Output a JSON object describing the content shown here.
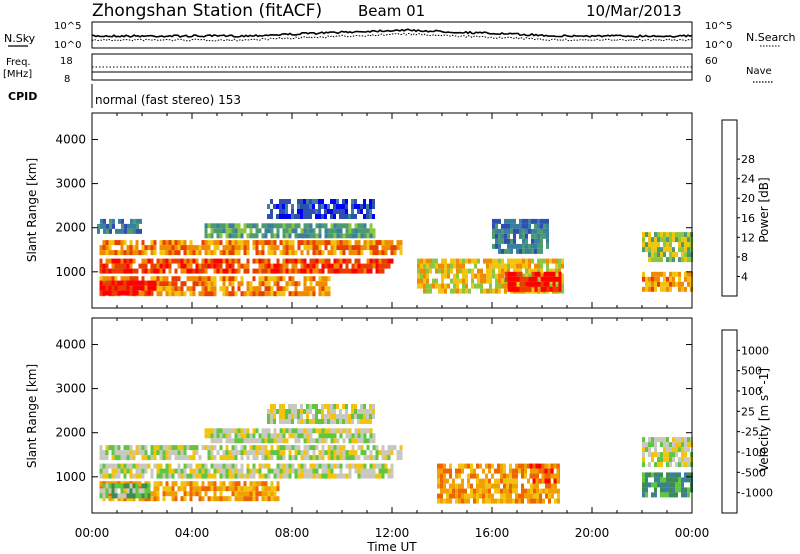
{
  "header": {
    "station": "Zhongshan Station (fitACF)",
    "beam": "Beam 01",
    "date": "10/Mar/2013"
  },
  "summary": {
    "nsky_label": "N.Sky",
    "nsearch_label": "N.Search",
    "freq_label_1": "Freq.",
    "freq_label_2": "[MHz]",
    "nave_label": "Nave",
    "cpid_label": "CPID",
    "cpid_text": "normal (fast stereo) 153",
    "noise_ticks_left": [
      "10^5",
      "10^0"
    ],
    "noise_ticks_right": [
      "10^5",
      "10^0"
    ],
    "freq_ticks": [
      "18",
      "8"
    ],
    "nave_ticks": [
      "60",
      "0"
    ]
  },
  "chart_data": [
    {
      "type": "heatmap",
      "name": "power-panel",
      "ylabel": "Slant Range [km]",
      "xlabel": "Time UT",
      "x_ticks": [
        "00:00",
        "04:00",
        "08:00",
        "12:00",
        "16:00",
        "20:00",
        "00:00"
      ],
      "x_range_hours": [
        0,
        24
      ],
      "y_ticks": [
        1000,
        2000,
        3000,
        4000
      ],
      "ylim": [
        180,
        4600
      ],
      "colorbar": {
        "label": "Power [dB]",
        "ticks": [
          "4",
          "8",
          "12",
          "16",
          "20",
          "24",
          "28"
        ],
        "colors": [
          "#0000ff",
          "#2c4fb0",
          "#3b7fa0",
          "#4c9a70",
          "#8cc63f",
          "#f2c40f",
          "#f08a00",
          "#e83e00",
          "#ff0000"
        ]
      },
      "bands": [
        {
          "t0": 0.3,
          "t1": 12.3,
          "r0": 1380,
          "r1": 1720,
          "level": 6
        },
        {
          "t0": 0.3,
          "t1": 12.0,
          "r0": 1000,
          "r1": 1300,
          "level": 7
        },
        {
          "t0": 0.3,
          "t1": 9.5,
          "r0": 500,
          "r1": 900,
          "level": 6
        },
        {
          "t0": 0.3,
          "t1": 2.5,
          "r0": 550,
          "r1": 800,
          "level": 8
        },
        {
          "t0": 4.5,
          "t1": 11.3,
          "r0": 1850,
          "r1": 2100,
          "level": 3
        },
        {
          "t0": 7.0,
          "t1": 11.3,
          "r0": 2250,
          "r1": 2650,
          "level": 1
        },
        {
          "t0": 0.2,
          "t1": 2.0,
          "r0": 1900,
          "r1": 2200,
          "level": 2
        },
        {
          "t0": 13.0,
          "t1": 18.8,
          "r0": 600,
          "r1": 1300,
          "level": 5
        },
        {
          "t0": 16.5,
          "t1": 18.7,
          "r0": 600,
          "r1": 1000,
          "level": 8
        },
        {
          "t0": 16.0,
          "t1": 18.2,
          "r0": 1500,
          "r1": 2200,
          "level": 2
        },
        {
          "t0": 22.0,
          "t1": 24.0,
          "r0": 600,
          "r1": 1000,
          "level": 6
        },
        {
          "t0": 22.0,
          "t1": 24.0,
          "r0": 1300,
          "r1": 1900,
          "level": 4
        }
      ]
    },
    {
      "type": "heatmap",
      "name": "velocity-panel",
      "ylabel": "Slant Range [km]",
      "xlabel": "Time UT",
      "x_ticks": [
        "00:00",
        "04:00",
        "08:00",
        "12:00",
        "16:00",
        "20:00",
        "00:00"
      ],
      "x_range_hours": [
        0,
        24
      ],
      "y_ticks": [
        1000,
        2000,
        3000,
        4000
      ],
      "ylim": [
        180,
        4600
      ],
      "colorbar": {
        "label": "Velocity [m s^-1]",
        "ticks": [
          "1000",
          "500",
          "100",
          "25",
          "-25",
          "-100",
          "-500",
          "-1000"
        ],
        "colors": [
          "#2c4fb0",
          "#3b7fa0",
          "#3c8c50",
          "#5ec63f",
          "#c8c8c0",
          "#f2c40f",
          "#f0a000",
          "#f06400",
          "#ff0000"
        ]
      },
      "bands": [
        {
          "t0": 0.3,
          "t1": 12.3,
          "r0": 1380,
          "r1": 1720,
          "level": 4
        },
        {
          "t0": 0.3,
          "t1": 12.0,
          "r0": 1000,
          "r1": 1300,
          "level": 4
        },
        {
          "t0": 0.3,
          "t1": 7.5,
          "r0": 500,
          "r1": 900,
          "level": 6
        },
        {
          "t0": 0.3,
          "t1": 2.3,
          "r0": 550,
          "r1": 850,
          "level": 3
        },
        {
          "t0": 4.5,
          "t1": 11.3,
          "r0": 1850,
          "r1": 2100,
          "level": 4
        },
        {
          "t0": 7.0,
          "t1": 11.3,
          "r0": 2250,
          "r1": 2650,
          "level": 4
        },
        {
          "t0": 13.8,
          "t1": 18.7,
          "r0": 500,
          "r1": 1300,
          "level": 6
        },
        {
          "t0": 17.5,
          "t1": 18.7,
          "r0": 900,
          "r1": 1300,
          "level": 7
        },
        {
          "t0": 22.0,
          "t1": 24.0,
          "r0": 600,
          "r1": 1100,
          "level": 2
        },
        {
          "t0": 22.0,
          "t1": 24.0,
          "r0": 1300,
          "r1": 1900,
          "level": 4
        }
      ]
    }
  ]
}
